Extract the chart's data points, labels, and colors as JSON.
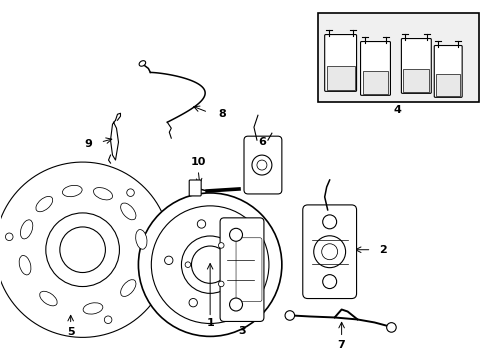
{
  "background_color": "#ffffff",
  "line_color": "#000000",
  "fig_width": 4.89,
  "fig_height": 3.6,
  "dpi": 100,
  "label_fontsize": 8.0
}
